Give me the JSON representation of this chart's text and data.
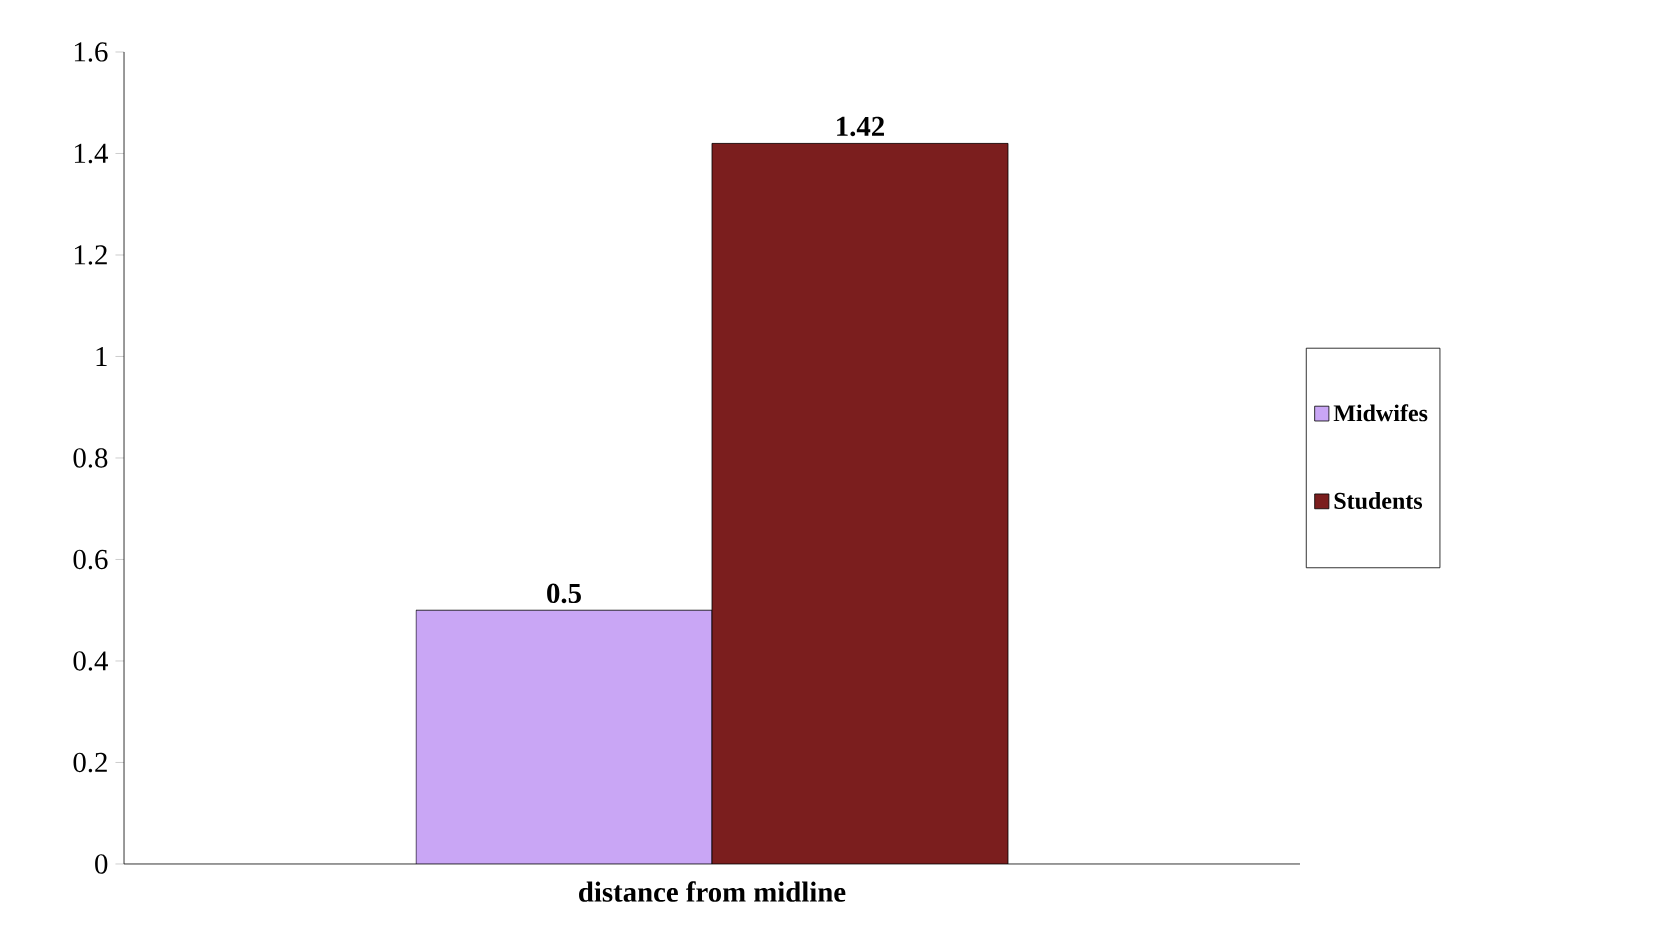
{
  "chart_data": {
    "type": "bar",
    "xlabel": "distance from midline",
    "categories": [
      null
    ],
    "series": [
      {
        "name": "Midwifes",
        "color": "#c9a6f5",
        "values": [
          0.5
        ]
      },
      {
        "name": "Students",
        "color": "#7b1e1e",
        "values": [
          1.42
        ]
      }
    ],
    "ylim": [
      0,
      1.6
    ],
    "yticks": [
      0,
      0.2,
      0.4,
      0.6,
      0.8,
      1,
      1.2,
      1.4,
      1.6
    ],
    "data_labels": true,
    "legend": "right",
    "grid": false
  }
}
